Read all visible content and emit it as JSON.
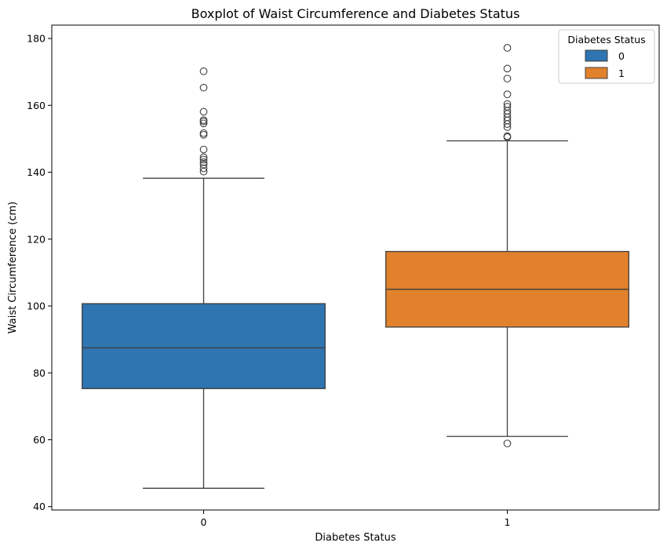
{
  "chart_data": {
    "type": "boxplot",
    "title": "Boxplot of Waist Circumference and Diabetes Status",
    "xlabel": "Diabetes Status",
    "ylabel": "Waist Circumference (cm)",
    "ylim": [
      39,
      184
    ],
    "yticks": [
      40,
      60,
      80,
      100,
      120,
      140,
      160,
      180
    ],
    "categories": [
      "0",
      "1"
    ],
    "grid": false,
    "legend": {
      "title": "Diabetes Status",
      "placement": "top-right",
      "entries": [
        "0",
        "1"
      ]
    },
    "series": [
      {
        "category": "0",
        "color": "#2e75b1",
        "whisker_low": 45.5,
        "q1": 75.3,
        "median": 87.5,
        "q3": 100.7,
        "whisker_high": 138.2,
        "outliers": [
          140.2,
          141.2,
          142.3,
          143.0,
          143.8,
          144.5,
          146.8,
          151.2,
          151.7,
          154.6,
          155.2,
          155.6,
          158.1,
          165.3,
          170.2
        ]
      },
      {
        "category": "1",
        "color": "#e1812c",
        "whisker_low": 61.0,
        "q1": 93.7,
        "median": 105.0,
        "q3": 116.3,
        "whisker_high": 149.4,
        "outliers": [
          58.9,
          150.5,
          150.8,
          153.5,
          154.4,
          155.5,
          156.4,
          157.5,
          158.4,
          159.6,
          160.4,
          163.3,
          168.0,
          171.0,
          177.2
        ]
      }
    ]
  },
  "colors": {
    "axis": "#000000",
    "line": "#3f3f3f",
    "legend_border": "#cccccc"
  }
}
